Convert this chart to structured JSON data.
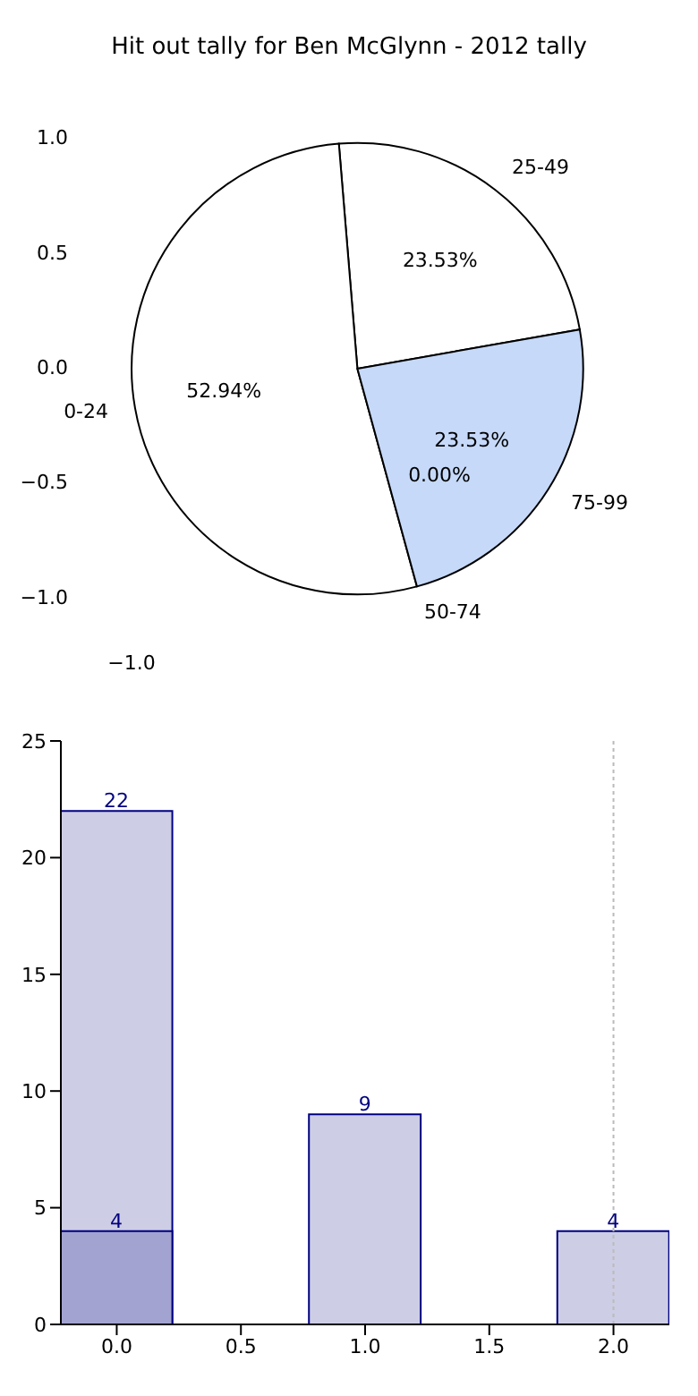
{
  "chart_data": [
    {
      "type": "pie",
      "title": "Hit out tally for Ben McGlynn - 2012 tally",
      "categories": [
        "25-49",
        "0-24",
        "50-74",
        "75-99"
      ],
      "values": [
        23.53,
        52.94,
        0,
        23.53
      ],
      "value_labels": [
        "23.53%",
        "52.94%",
        "0.00%",
        "23.53%"
      ],
      "colors": [
        "#ffffff",
        "#ffffff",
        "#ffffff",
        "#c6d9f9"
      ],
      "annotations": [
        "1.0",
        "0.5",
        "0.0",
        "−0.5",
        "−1.0",
        "−1.0"
      ]
    },
    {
      "type": "bar",
      "x": [
        0,
        1,
        2
      ],
      "series": [
        {
          "color": "#cdcde5",
          "values": [
            22,
            9,
            4
          ]
        },
        {
          "color": "#a3a3d1",
          "values": [
            4,
            null,
            null
          ]
        }
      ],
      "data_labels": true,
      "xlim": [
        -0.225,
        2.225
      ],
      "ylim": [
        0,
        25
      ],
      "xticks": [
        {
          "value": 0,
          "label": "0.0"
        },
        {
          "value": 0.5,
          "label": "0.5"
        },
        {
          "value": 1,
          "label": "1.0"
        },
        {
          "value": 1.5,
          "label": "1.5"
        },
        {
          "value": 2,
          "label": "2.0"
        }
      ],
      "yticks": [
        0,
        5,
        10,
        15,
        20,
        25
      ],
      "ref_lines": [
        {
          "axis": "x",
          "value": 2,
          "color": "#bbbbbb",
          "line_style": "dotted"
        }
      ]
    }
  ]
}
